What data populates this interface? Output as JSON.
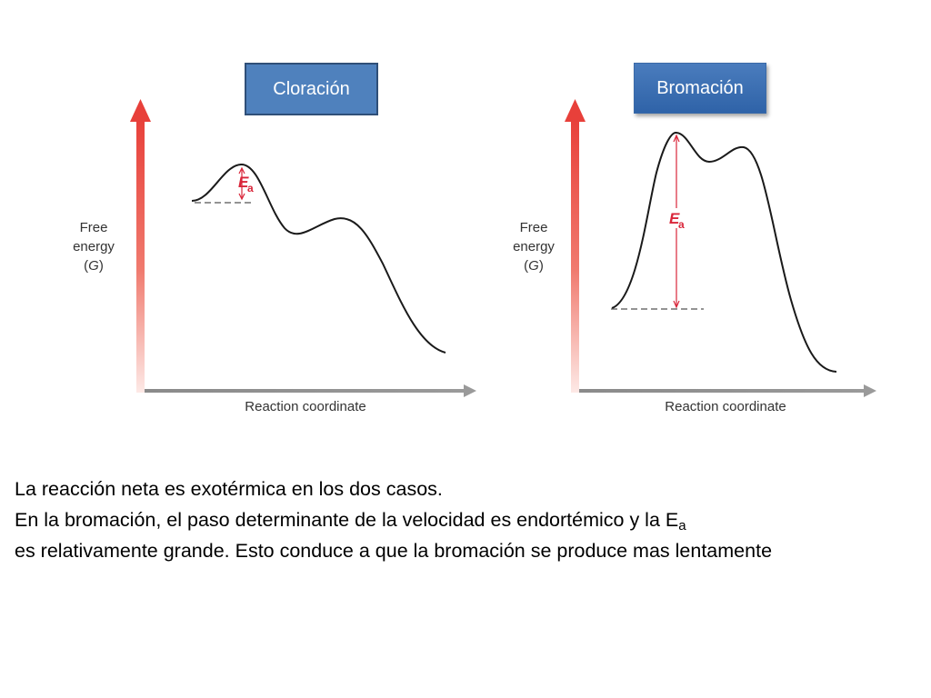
{
  "diagrams": [
    {
      "title": "Cloración",
      "y_axis_label": [
        "Free",
        "energy",
        "(G)"
      ],
      "x_axis_label": "Reaction coordinate",
      "annotation": "Ea"
    },
    {
      "title": "Bromación",
      "y_axis_label": [
        "Free",
        "energy",
        "(G)"
      ],
      "x_axis_label": "Reaction coordinate",
      "annotation": "Ea"
    }
  ],
  "caption": {
    "line1": "La reacción neta es exotérmica en los dos casos.",
    "line2": "En la bromación, el paso determinante de la velocidad es endortémico y la E",
    "line2_sub": "a",
    "line3": "es relativamente grande. Esto conduce a que la bromación se produce mas lentamente"
  },
  "colors": {
    "axis_arrow_top": "#e8403a",
    "axis_arrow_bottom": "#fbe3df",
    "ea_color": "#d9263a",
    "box_fill": "#4f81bd"
  }
}
